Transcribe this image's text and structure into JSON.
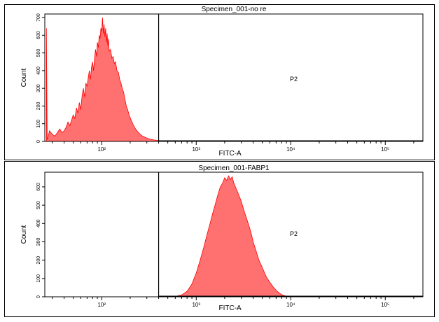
{
  "chart_data": [
    {
      "type": "area",
      "title": "Specimen_001-no re",
      "xlabel": "FITC-A",
      "ylabel": "Count",
      "x_scale": "log",
      "xlim": [
        25,
        250000
      ],
      "ylim": [
        0,
        720
      ],
      "yticks": [
        0,
        100,
        200,
        300,
        400,
        500,
        600,
        700
      ],
      "x_tick_labels": [
        {
          "value": 100,
          "label": "10²"
        },
        {
          "value": 1000,
          "label": "10³"
        },
        {
          "value": 10000,
          "label": "10⁴"
        },
        {
          "value": 100000,
          "label": "10⁵"
        }
      ],
      "gate": {
        "name": "P2",
        "start": 400
      },
      "fill_color": "#ff7070",
      "line_color": "#ff0000",
      "series": [
        {
          "x": [
            26,
            26.5,
            27,
            28,
            30,
            32,
            34,
            36,
            38,
            40,
            42,
            44,
            46,
            48,
            50,
            52,
            54,
            56,
            58,
            60,
            62,
            64,
            66,
            68,
            70,
            72,
            74,
            76,
            78,
            80,
            82,
            84,
            86,
            88,
            90,
            92,
            94,
            96,
            98,
            100,
            102,
            104,
            106,
            108,
            110,
            112,
            114,
            116,
            118,
            120,
            124,
            128,
            132,
            136,
            140,
            145,
            150,
            155,
            160,
            165,
            170,
            176,
            182,
            188,
            195,
            205,
            215,
            225,
            240,
            255,
            270,
            290,
            310,
            330,
            360,
            390,
            420,
            460,
            520,
            650,
            1000,
            2000,
            4000
          ],
          "y": [
            640,
            10,
            20,
            60,
            40,
            30,
            50,
            70,
            50,
            60,
            80,
            110,
            90,
            120,
            150,
            130,
            190,
            160,
            220,
            180,
            260,
            300,
            250,
            330,
            310,
            360,
            400,
            350,
            420,
            450,
            400,
            470,
            520,
            480,
            560,
            530,
            600,
            580,
            640,
            620,
            700,
            610,
            660,
            590,
            640,
            560,
            610,
            540,
            580,
            510,
            520,
            470,
            480,
            440,
            450,
            400,
            390,
            350,
            330,
            300,
            280,
            240,
            200,
            180,
            150,
            120,
            95,
            75,
            55,
            40,
            30,
            22,
            16,
            12,
            8,
            6,
            4,
            3,
            2,
            1,
            0,
            0,
            0
          ]
        }
      ]
    },
    {
      "type": "area",
      "title": "Specimen_001-FABP1",
      "xlabel": "FITC-A",
      "ylabel": "Count",
      "x_scale": "log",
      "xlim": [
        25,
        250000
      ],
      "ylim": [
        0,
        680
      ],
      "yticks": [
        0,
        100,
        200,
        300,
        400,
        500,
        600
      ],
      "x_tick_labels": [
        {
          "value": 100,
          "label": "10²"
        },
        {
          "value": 1000,
          "label": "10³"
        },
        {
          "value": 10000,
          "label": "10⁴"
        },
        {
          "value": 100000,
          "label": "10⁵"
        }
      ],
      "gate": {
        "name": "P2",
        "start": 400
      },
      "fill_color": "#ff7070",
      "line_color": "#ff0000",
      "series": [
        {
          "x": [
            600,
            700,
            800,
            900,
            1000,
            1100,
            1200,
            1300,
            1400,
            1500,
            1600,
            1700,
            1800,
            1900,
            2000,
            2100,
            2200,
            2300,
            2400,
            2500,
            2600,
            2800,
            3000,
            3200,
            3400,
            3600,
            3800,
            4000,
            4300,
            4600,
            5000,
            5500,
            6000,
            6500,
            7000,
            7500,
            8000,
            8600,
            9500,
            11000
          ],
          "y": [
            2,
            10,
            30,
            70,
            130,
            200,
            270,
            340,
            400,
            460,
            510,
            560,
            600,
            620,
            650,
            635,
            660,
            640,
            655,
            620,
            600,
            560,
            520,
            470,
            430,
            390,
            350,
            300,
            250,
            200,
            160,
            110,
            80,
            55,
            35,
            22,
            12,
            6,
            2,
            0
          ]
        }
      ]
    }
  ]
}
